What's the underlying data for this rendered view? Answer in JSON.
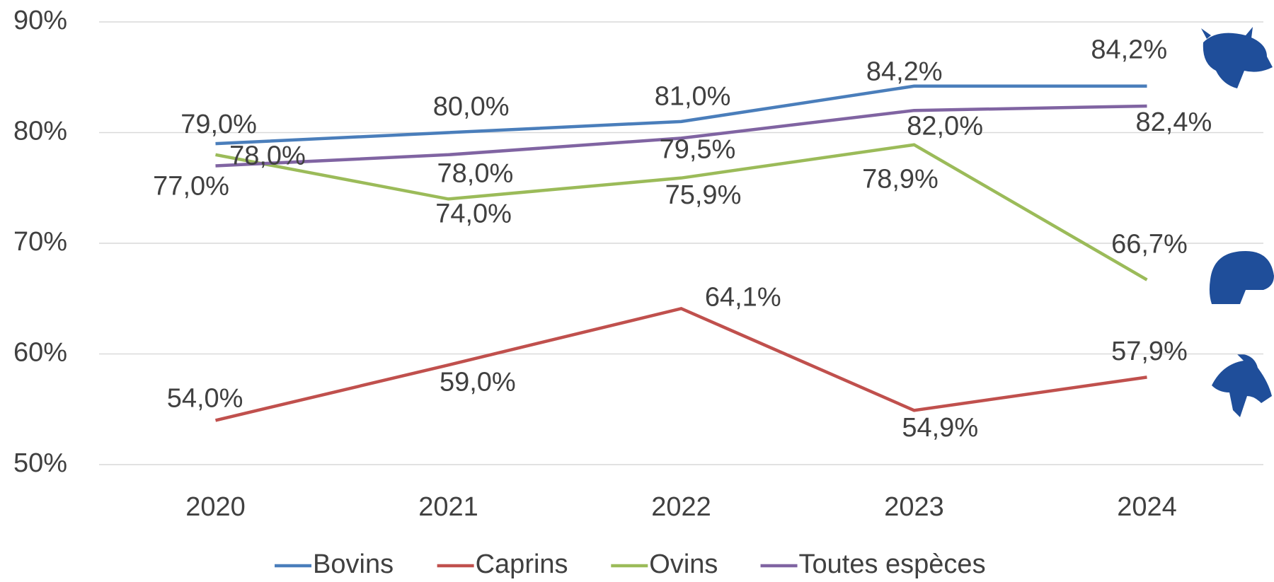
{
  "chart_data": {
    "type": "line",
    "categories": [
      "2020",
      "2021",
      "2022",
      "2023",
      "2024"
    ],
    "series": [
      {
        "name": "Bovins",
        "color": "#4a7ebb",
        "values": [
          79.0,
          80.0,
          81.0,
          84.2,
          84.2
        ],
        "value_labels": [
          "79,0%",
          "80,0%",
          "81,0%",
          "84,2%",
          "84,2%"
        ]
      },
      {
        "name": "Caprins",
        "color": "#c0504d",
        "values": [
          54.0,
          59.0,
          64.1,
          54.9,
          57.9
        ],
        "value_labels": [
          "54,0%",
          "59,0%",
          "64,1%",
          "54,9%",
          "57,9%"
        ]
      },
      {
        "name": "Ovins",
        "color": "#9bbb59",
        "values": [
          78.0,
          74.0,
          75.9,
          78.9,
          66.7
        ],
        "value_labels": [
          "78,0%",
          "74,0%",
          "75,9%",
          "78,9%",
          "66,7%"
        ]
      },
      {
        "name": "Toutes espèces",
        "color": "#8064a2",
        "values": [
          77.0,
          78.0,
          79.5,
          82.0,
          82.4
        ],
        "value_labels": [
          "77,0%",
          "78,0%",
          "79,5%",
          "82,0%",
          "82,4%"
        ]
      }
    ],
    "ylim": [
      50,
      90
    ],
    "yticks": [
      {
        "value": 50,
        "label": "50%"
      },
      {
        "value": 60,
        "label": "60%"
      },
      {
        "value": 70,
        "label": "70%"
      },
      {
        "value": 80,
        "label": "80%"
      },
      {
        "value": 90,
        "label": "90%"
      }
    ],
    "grid": true,
    "legend": "bottom"
  }
}
